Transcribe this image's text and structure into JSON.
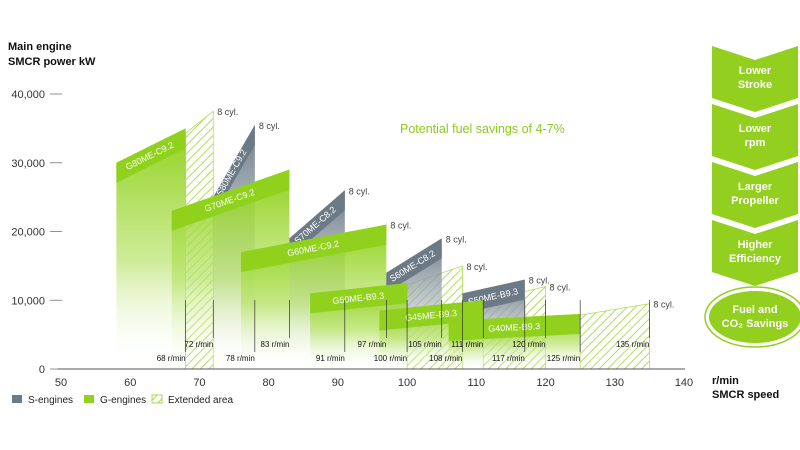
{
  "chart_data": {
    "type": "area",
    "ylabel_lines": [
      "Main engine",
      "SMCR power kW"
    ],
    "xlabel_lines": [
      "r/min",
      "SMCR speed"
    ],
    "xlim": [
      50,
      140
    ],
    "ylim": [
      0,
      40000
    ],
    "x_ticks": [
      "50",
      "60",
      "70",
      "80",
      "90",
      "100",
      "110",
      "120",
      "130",
      "140"
    ],
    "y_ticks": [
      "0",
      "10,000",
      "20,000",
      "30,000",
      "40,000"
    ],
    "annotation": "Potential fuel savings of 4-7%",
    "legend": [
      {
        "label": "S-engines",
        "type": "S"
      },
      {
        "label": "G-engines",
        "type": "G"
      },
      {
        "label": "Extended area",
        "type": "ext"
      }
    ],
    "engines": [
      {
        "name": "G80ME-C9.2",
        "type": "G",
        "x_start": 58,
        "x_end": 68,
        "y_low": 30000,
        "y_high": 35000,
        "ext_end": 72,
        "ext_high": 37500,
        "cyl_label": "8 cyl."
      },
      {
        "name": "S80ME-C9.2",
        "type": "S",
        "x_start": 72,
        "x_end": 78,
        "y_low": 25000,
        "y_high": 35500,
        "cyl_label": "8 cyl."
      },
      {
        "name": "G70ME-C9.2",
        "type": "G",
        "x_start": 66,
        "x_end": 83,
        "y_low": 23000,
        "y_high": 29000,
        "cyl_label": null
      },
      {
        "name": "S70ME-C8.2",
        "type": "S",
        "x_start": 83,
        "x_end": 91,
        "y_low": 19000,
        "y_high": 26000,
        "cyl_label": "8 cyl."
      },
      {
        "name": "G60ME-C9.2",
        "type": "G",
        "x_start": 76,
        "x_end": 97,
        "y_low": 17000,
        "y_high": 21000,
        "ext_end": 97,
        "ext_high": 21000,
        "cyl_label": "8 cyl."
      },
      {
        "name": "S60ME-C8.2",
        "type": "S",
        "x_start": 97,
        "x_end": 105,
        "y_low": 14000,
        "y_high": 19000,
        "cyl_label": "8 cyl."
      },
      {
        "name": "G50ME-B9.3",
        "type": "G",
        "x_start": 86,
        "x_end": 100,
        "y_low": 11000,
        "y_high": 12500,
        "ext_end": 108,
        "ext_high": 15000,
        "cyl_label": "8 cyl."
      },
      {
        "name": "S50ME-B9.3",
        "type": "S",
        "x_start": 108,
        "x_end": 117,
        "y_low": 11000,
        "y_high": 13000,
        "cyl_label": "8 cyl."
      },
      {
        "name": "G45ME-B9.3",
        "type": "G",
        "x_start": 96,
        "x_end": 111,
        "y_low": 8500,
        "y_high": 10000,
        "ext_end": 120,
        "ext_high": 12000,
        "cyl_label": "8 cyl."
      },
      {
        "name": "G40ME-B9.3",
        "type": "G",
        "x_start": 106,
        "x_end": 125,
        "y_low": 7000,
        "y_high": 8000,
        "ext_end": 135,
        "ext_high": 9500,
        "cyl_label": "8 cyl."
      }
    ],
    "rpm_labels": [
      {
        "x": 68,
        "text": "68 r/min",
        "row": 1
      },
      {
        "x": 72,
        "text": "72 r/min",
        "row": 0
      },
      {
        "x": 78,
        "text": "78 r/min",
        "row": 1
      },
      {
        "x": 83,
        "text": "83 r/min",
        "row": 0
      },
      {
        "x": 91,
        "text": "91 r/min",
        "row": 1
      },
      {
        "x": 97,
        "text": "97 r/min",
        "row": 0
      },
      {
        "x": 100,
        "text": "100 r/min",
        "row": 1
      },
      {
        "x": 105,
        "text": "105 r/min",
        "row": 0
      },
      {
        "x": 108,
        "text": "108 r/min",
        "row": 1
      },
      {
        "x": 111,
        "text": "111 r/min",
        "row": 0
      },
      {
        "x": 117,
        "text": "117 r/min",
        "row": 1
      },
      {
        "x": 120,
        "text": "120 r/min",
        "row": 0
      },
      {
        "x": 125,
        "text": "125 r/min",
        "row": 1
      },
      {
        "x": 135,
        "text": "135 r/min",
        "row": 0
      }
    ],
    "benefit_arrows": [
      [
        "Lower",
        "Stroke"
      ],
      [
        "Lower",
        "rpm"
      ],
      [
        "Larger",
        "Propeller"
      ],
      [
        "Higher",
        "Efficiency"
      ]
    ],
    "result": [
      "Fuel and",
      "CO₂ Savings"
    ],
    "colors": {
      "G": "#8fd11c",
      "S": "#6c7a86",
      "ext": "#b6e05a",
      "arrow": "#92cf1e"
    }
  }
}
